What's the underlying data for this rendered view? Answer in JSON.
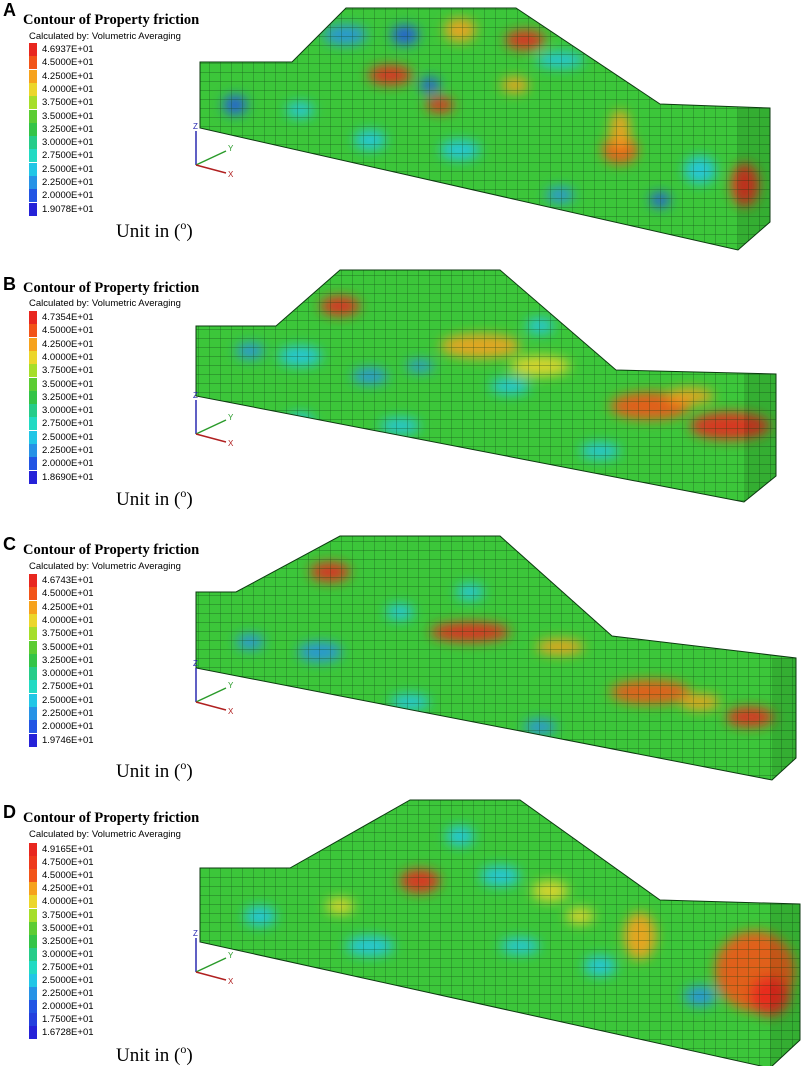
{
  "panels": [
    {
      "label": "A",
      "title": "Contour of Property friction",
      "subtitle": "Calculated by: Volumetric Averaging",
      "unit_prefix": "Unit in (",
      "unit_degree": "o",
      "unit_suffix": ")",
      "legend": [
        {
          "value": "4.6937E+01",
          "color": "#e8271f"
        },
        {
          "value": "4.5000E+01",
          "color": "#f25418"
        },
        {
          "value": "4.2500E+01",
          "color": "#f6a21c"
        },
        {
          "value": "4.0000E+01",
          "color": "#ecd62b"
        },
        {
          "value": "3.7500E+01",
          "color": "#a6de2a"
        },
        {
          "value": "3.5000E+01",
          "color": "#5ccc33"
        },
        {
          "value": "3.2500E+01",
          "color": "#34c447"
        },
        {
          "value": "3.0000E+01",
          "color": "#26cc89"
        },
        {
          "value": "2.7500E+01",
          "color": "#22dac3"
        },
        {
          "value": "2.5000E+01",
          "color": "#22c6e6"
        },
        {
          "value": "2.2500E+01",
          "color": "#2792e6"
        },
        {
          "value": "2.0000E+01",
          "color": "#2255e4"
        },
        {
          "value": "1.9078E+01",
          "color": "#2522d8"
        }
      ]
    },
    {
      "label": "B",
      "title": "Contour of Property friction",
      "subtitle": "Calculated by: Volumetric Averaging",
      "unit_prefix": "Unit in (",
      "unit_degree": "o",
      "unit_suffix": ")",
      "legend": [
        {
          "value": "4.7354E+01",
          "color": "#e8271f"
        },
        {
          "value": "4.5000E+01",
          "color": "#f25418"
        },
        {
          "value": "4.2500E+01",
          "color": "#f6a21c"
        },
        {
          "value": "4.0000E+01",
          "color": "#ecd62b"
        },
        {
          "value": "3.7500E+01",
          "color": "#a6de2a"
        },
        {
          "value": "3.5000E+01",
          "color": "#5ccc33"
        },
        {
          "value": "3.2500E+01",
          "color": "#34c447"
        },
        {
          "value": "3.0000E+01",
          "color": "#26cc89"
        },
        {
          "value": "2.7500E+01",
          "color": "#22dac3"
        },
        {
          "value": "2.5000E+01",
          "color": "#22c6e6"
        },
        {
          "value": "2.2500E+01",
          "color": "#2792e6"
        },
        {
          "value": "2.0000E+01",
          "color": "#2255e4"
        },
        {
          "value": "1.8690E+01",
          "color": "#2522d8"
        }
      ]
    },
    {
      "label": "C",
      "title": "Contour of Property friction",
      "subtitle": "Calculated by: Volumetric Averaging",
      "unit_prefix": "Unit in (",
      "unit_degree": "o",
      "unit_suffix": ")",
      "legend": [
        {
          "value": "4.6743E+01",
          "color": "#e8271f"
        },
        {
          "value": "4.5000E+01",
          "color": "#f25418"
        },
        {
          "value": "4.2500E+01",
          "color": "#f6a21c"
        },
        {
          "value": "4.0000E+01",
          "color": "#ecd62b"
        },
        {
          "value": "3.7500E+01",
          "color": "#a6de2a"
        },
        {
          "value": "3.5000E+01",
          "color": "#5ccc33"
        },
        {
          "value": "3.2500E+01",
          "color": "#34c447"
        },
        {
          "value": "3.0000E+01",
          "color": "#26cc89"
        },
        {
          "value": "2.7500E+01",
          "color": "#22dac3"
        },
        {
          "value": "2.5000E+01",
          "color": "#22c6e6"
        },
        {
          "value": "2.2500E+01",
          "color": "#2792e6"
        },
        {
          "value": "2.0000E+01",
          "color": "#2255e4"
        },
        {
          "value": "1.9746E+01",
          "color": "#2522d8"
        }
      ]
    },
    {
      "label": "D",
      "title": "Contour of Property friction",
      "subtitle": "Calculated by: Volumetric Averaging",
      "unit_prefix": "Unit in (",
      "unit_degree": "o",
      "unit_suffix": ")",
      "legend": [
        {
          "value": "4.9165E+01",
          "color": "#e8271f"
        },
        {
          "value": "4.7500E+01",
          "color": "#ee3a1c"
        },
        {
          "value": "4.5000E+01",
          "color": "#f25418"
        },
        {
          "value": "4.2500E+01",
          "color": "#f6a21c"
        },
        {
          "value": "4.0000E+01",
          "color": "#ecd62b"
        },
        {
          "value": "3.7500E+01",
          "color": "#a6de2a"
        },
        {
          "value": "3.5000E+01",
          "color": "#5ccc33"
        },
        {
          "value": "3.2500E+01",
          "color": "#34c447"
        },
        {
          "value": "3.0000E+01",
          "color": "#26cc89"
        },
        {
          "value": "2.7500E+01",
          "color": "#22dac3"
        },
        {
          "value": "2.5000E+01",
          "color": "#22c6e6"
        },
        {
          "value": "2.2500E+01",
          "color": "#2792e6"
        },
        {
          "value": "2.0000E+01",
          "color": "#2255e4"
        },
        {
          "value": "1.7500E+01",
          "color": "#2440de"
        },
        {
          "value": "1.6728E+01",
          "color": "#2522d8"
        }
      ]
    }
  ],
  "axis_labels": {
    "x": "X",
    "y": "Y",
    "z": "Z"
  },
  "colors": {
    "mesh_base": "#3cc63a",
    "mesh_line": "#0c3a10",
    "axis_x": "#b02020",
    "axis_y": "#2a9a2a",
    "axis_z": "#2a2ab0"
  }
}
